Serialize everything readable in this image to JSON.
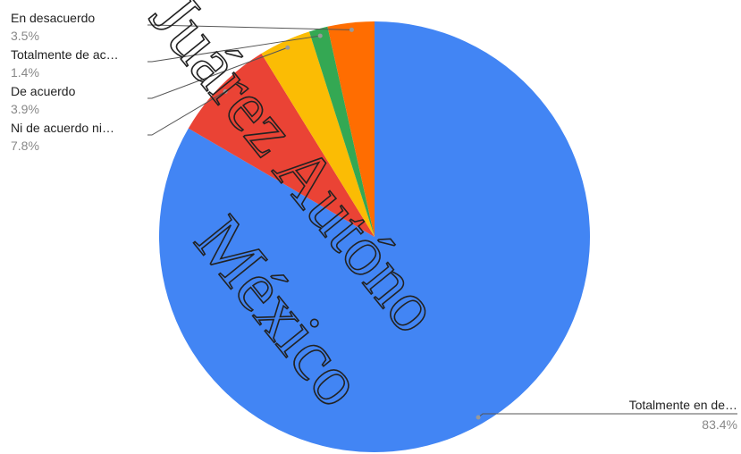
{
  "chart_data": {
    "type": "pie",
    "categories": [
      "Totalmente en de…",
      "Ni de acuerdo ni…",
      "De acuerdo",
      "Totalmente de ac…",
      "En desacuerdo"
    ],
    "values": [
      83.4,
      7.8,
      3.9,
      1.4,
      3.5
    ],
    "value_labels": [
      "83.4%",
      "7.8%",
      "3.9%",
      "1.4%",
      "3.5%"
    ],
    "colors": [
      "#4285f4",
      "#ea4335",
      "#fbbc04",
      "#34a853",
      "#ff6d01"
    ],
    "watermark": [
      "Juárez Autóno",
      "México"
    ]
  }
}
